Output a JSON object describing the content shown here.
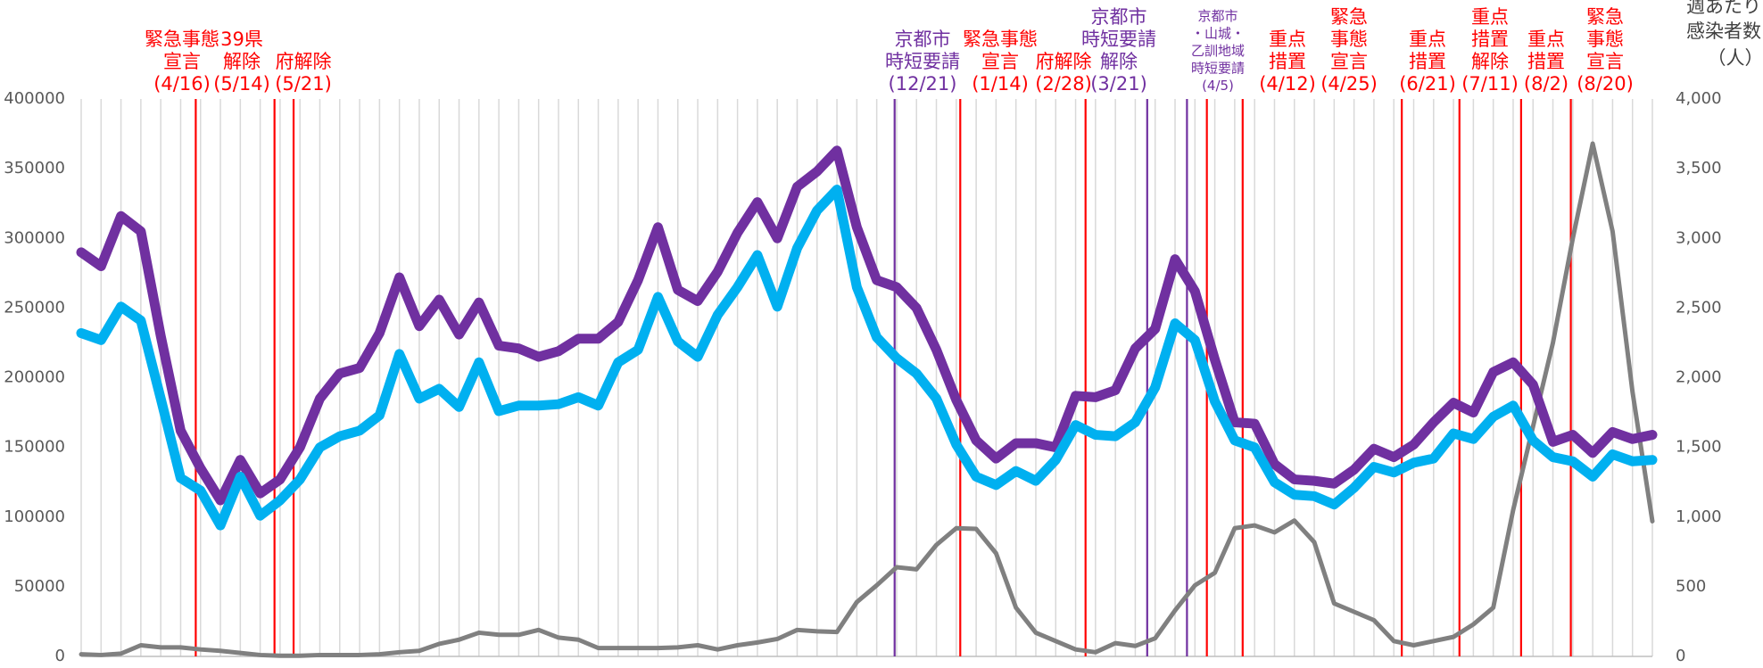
{
  "chart_data": {
    "type": "line",
    "categories": [
      null,
      null,
      null,
      null,
      null,
      null,
      null,
      null,
      null,
      null,
      null,
      null,
      null,
      null,
      null,
      null,
      null,
      null,
      null,
      null,
      null,
      null,
      null,
      null,
      null,
      null,
      null,
      null,
      null,
      null,
      null,
      null,
      null,
      null,
      null,
      null,
      null,
      null,
      null,
      null,
      null,
      null,
      null,
      null,
      null,
      null,
      null,
      null,
      null,
      null,
      null,
      null,
      null,
      null,
      null,
      null,
      null,
      null,
      null,
      null,
      null,
      null,
      null,
      null,
      null,
      null,
      null,
      null,
      null,
      null,
      null,
      null,
      null,
      null,
      null,
      null,
      null,
      null,
      null,
      null
    ],
    "series": [
      {
        "color": "#7030a0",
        "axis": "y",
        "values": [
          290000,
          280000,
          316000,
          305000,
          230000,
          162000,
          135000,
          112000,
          141000,
          117000,
          127000,
          150000,
          185000,
          203000,
          207000,
          232000,
          272000,
          237000,
          256000,
          231000,
          254000,
          223000,
          221000,
          215000,
          219000,
          228000,
          228000,
          240000,
          270000,
          308000,
          263000,
          255000,
          276000,
          304000,
          326000,
          300000,
          337000,
          348000,
          363000,
          308000,
          270000,
          265000,
          250000,
          220000,
          184000,
          155000,
          142000,
          153000,
          153000,
          150000,
          187000,
          186000,
          191000,
          221000,
          235000,
          285000,
          262000,
          213000,
          168000,
          167000,
          138000,
          127000,
          126000,
          124000,
          134000,
          149000,
          143000,
          152000,
          168000,
          182000,
          175000,
          204000,
          211000,
          195000,
          154000,
          159000,
          146000,
          161000,
          156000,
          159000
        ]
      },
      {
        "color": "#00b0f0",
        "axis": "y",
        "values": [
          232000,
          227000,
          251000,
          241000,
          185000,
          128000,
          119000,
          94000,
          129000,
          101000,
          112000,
          127000,
          150000,
          158000,
          162000,
          173000,
          217000,
          185000,
          192000,
          179000,
          211000,
          176000,
          180000,
          180000,
          181000,
          186000,
          180000,
          211000,
          220000,
          258000,
          226000,
          215000,
          245000,
          265000,
          288000,
          251000,
          293000,
          320000,
          335000,
          265000,
          229000,
          214000,
          203000,
          185000,
          152000,
          129000,
          123000,
          133000,
          126000,
          141000,
          166000,
          159000,
          158000,
          168000,
          193000,
          239000,
          227000,
          183000,
          155000,
          150000,
          125000,
          116000,
          115000,
          109000,
          121000,
          136000,
          132000,
          139000,
          142000,
          160000,
          156000,
          172000,
          180000,
          155000,
          143000,
          140000,
          129000,
          145000,
          140000,
          141000
        ]
      },
      {
        "color": "#808080",
        "axis": "y2",
        "values": [
          15,
          10,
          20,
          80,
          65,
          65,
          50,
          40,
          25,
          10,
          5,
          5,
          10,
          10,
          10,
          15,
          30,
          40,
          90,
          120,
          170,
          155,
          155,
          190,
          135,
          120,
          60,
          60,
          60,
          60,
          65,
          80,
          50,
          80,
          100,
          125,
          190,
          180,
          175,
          390,
          510,
          640,
          625,
          800,
          920,
          915,
          740,
          350,
          170,
          110,
          50,
          30,
          95,
          75,
          130,
          330,
          510,
          600,
          920,
          940,
          890,
          975,
          820,
          380,
          320,
          260,
          110,
          80,
          110,
          140,
          230,
          350,
          1050,
          1650,
          2250,
          3000,
          3680,
          3050,
          1900,
          970
        ]
      }
    ],
    "ylim": [
      0,
      400000
    ],
    "yticks": [
      0,
      50000,
      100000,
      150000,
      200000,
      250000,
      300000,
      350000,
      400000
    ],
    "y2lim": [
      0,
      4000
    ],
    "y2ticks": [
      0,
      500,
      {
        "value": 1000,
        "label": "1,000"
      },
      {
        "value": 1500,
        "label": "1,500"
      },
      {
        "value": 2000,
        "label": "2,000"
      },
      {
        "value": 2500,
        "label": "2,500"
      },
      {
        "value": 3000,
        "label": "3,000"
      },
      {
        "value": 3500,
        "label": "3,500"
      },
      {
        "value": 4000,
        "label": "4,000"
      }
    ],
    "y2_label": [
      "週あたり",
      "感染者数",
      "（人）"
    ],
    "grid": "x",
    "annotations": [
      {
        "text": [
          "緊急事態",
          "宣言",
          "(4/16)"
        ],
        "color": "#ff0000",
        "at": 5.76
      },
      {
        "text": [
          "39県",
          "解除",
          "(5/14)"
        ],
        "color": "#ff0000",
        "at": 9.72
      },
      {
        "text": [
          "府解除",
          "(5/21)"
        ],
        "color": "#ff0000",
        "at": 10.68
      },
      {
        "text": [
          "京都市",
          "時短要請",
          "(12/21)"
        ],
        "color": "#7030a0",
        "at": 40.9
      },
      {
        "text": [
          "緊急事態",
          "宣言",
          "(1/14)"
        ],
        "color": "#ff0000",
        "at": 44.2
      },
      {
        "text": [
          "府解除",
          "(2/28)"
        ],
        "color": "#ff0000",
        "at": 50.5
      },
      {
        "text": [
          "京都市",
          "時短要請",
          "解除",
          "(3/21)"
        ],
        "color": "#7030a0",
        "at": 53.6
      },
      {
        "text": [
          "京都市",
          "・山城・",
          "乙訓地域",
          "時短要請",
          "(4/5)"
        ],
        "color": "#7030a0",
        "at": 55.6
      },
      {
        "text": [
          "重点",
          "措置",
          "(4/12)"
        ],
        "color": "#ff0000",
        "at": 56.6
      },
      {
        "text": [
          "緊急",
          "事態",
          "宣言",
          "(4/25)"
        ],
        "color": "#ff0000",
        "at": 58.4
      },
      {
        "text": [
          "重点",
          "措置",
          "(6/21)"
        ],
        "color": "#ff0000",
        "at": 66.4
      },
      {
        "text": [
          "重点",
          "措置",
          "解除",
          "(7/11)"
        ],
        "color": "#ff0000",
        "at": 69.3
      },
      {
        "text": [
          "重点",
          "措置",
          "(8/2)"
        ],
        "color": "#ff0000",
        "at": 72.4
      },
      {
        "text": [
          "緊急",
          "事態",
          "宣言",
          "(8/20)"
        ],
        "color": "#ff0000",
        "at": 74.9
      }
    ]
  }
}
